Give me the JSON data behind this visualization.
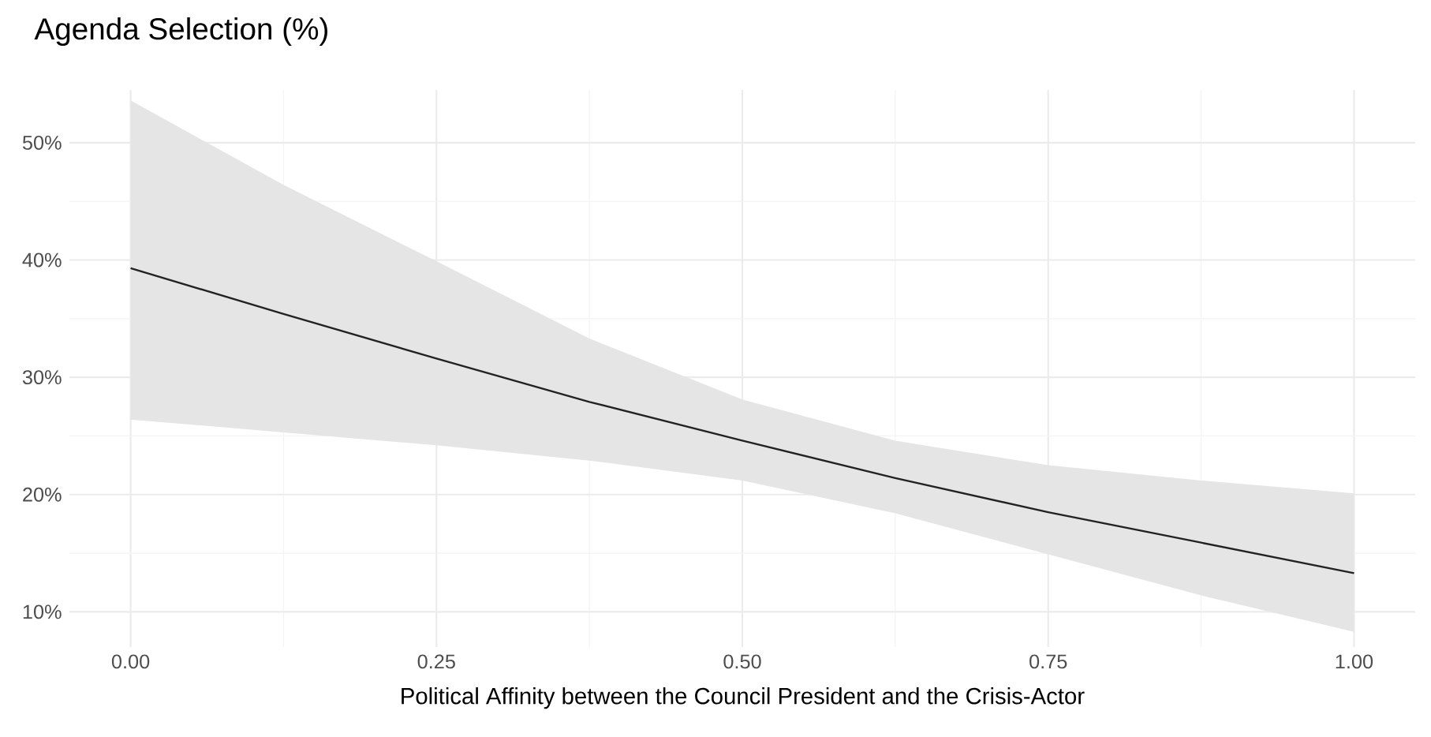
{
  "chart_data": {
    "type": "line",
    "title": "Agenda Selection (%)",
    "xlabel": "Political Affinity between the Council President and the Crisis-Actor",
    "x": [
      0,
      0.125,
      0.25,
      0.375,
      0.5,
      0.625,
      0.75,
      0.875,
      1.0
    ],
    "series": [
      {
        "color": "#222222",
        "values": [
          39.3,
          35.4,
          31.6,
          27.9,
          24.6,
          21.4,
          18.5,
          15.9,
          13.3
        ],
        "lower": [
          26.4,
          25.3,
          24.2,
          22.9,
          21.2,
          18.4,
          14.9,
          11.4,
          8.3
        ],
        "upper": [
          53.6,
          46.4,
          39.9,
          33.3,
          28.1,
          24.6,
          22.5,
          21.2,
          20.1
        ]
      }
    ],
    "xlim": [
      -0.05,
      1.05
    ],
    "ylim": [
      7,
      54.5
    ],
    "xticks": [
      {
        "value": 0,
        "label": "0.00"
      },
      {
        "value": 0.25,
        "label": "0.25"
      },
      {
        "value": 0.5,
        "label": "0.50"
      },
      {
        "value": 0.75,
        "label": "0.75"
      },
      {
        "value": 1.0,
        "label": "1.00"
      }
    ],
    "yticks": [
      {
        "value": 10,
        "label": "10%"
      },
      {
        "value": 20,
        "label": "20%"
      },
      {
        "value": 30,
        "label": "30%"
      },
      {
        "value": 40,
        "label": "40%"
      },
      {
        "value": 50,
        "label": "50%"
      }
    ],
    "grid": true,
    "line_style": "solid",
    "marker": "none"
  }
}
